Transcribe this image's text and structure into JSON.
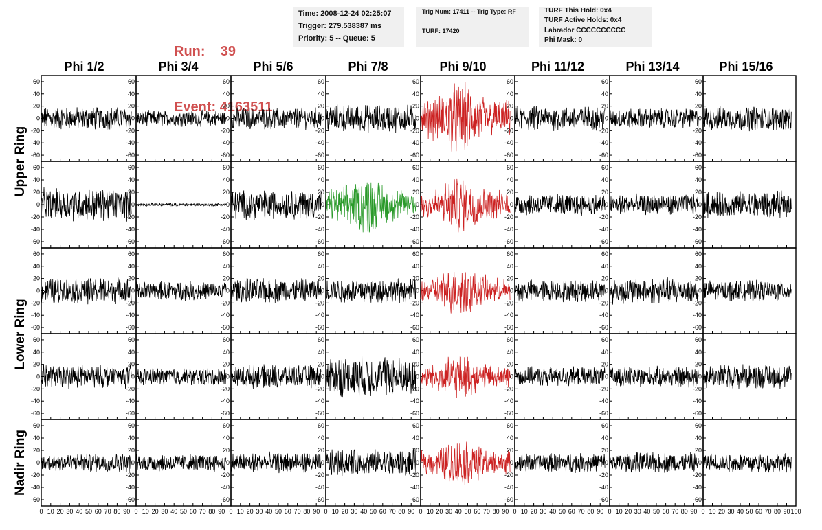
{
  "header": {
    "run_label": "Run:",
    "run_value": "39",
    "event_label": "Event:",
    "event_value": "4163511",
    "time": "Time: 2008-12-24 02:25:07",
    "trigger": "Trigger: 279.538387 ms",
    "priority": "Priority: 5 -- Queue: 5",
    "trig_num": "Trig Num: 17411 -- Trig Type: RF",
    "turf": "TURF: 17420",
    "turf_this_hold": "TURF This Hold: 0x4",
    "turf_active_holds": "TURF Active Holds: 0x4",
    "labrador": "Labrador CCCCCCCCCC",
    "phi_mask": "Phi Mask: 0"
  },
  "colors": {
    "highlight_text": "#d05050",
    "info_box_bg": "#f0f0f0",
    "trace_default": "#000000",
    "trace_red": "#cc2222",
    "trace_green": "#2a9a2a"
  },
  "chart_data": {
    "type": "line",
    "columns": [
      "Phi 1/2",
      "Phi 3/4",
      "Phi 5/6",
      "Phi 7/8",
      "Phi 9/10",
      "Phi 11/12",
      "Phi 13/14",
      "Phi 15/16"
    ],
    "rows": [
      "Upper Ring",
      "Upper Ring",
      "Lower Ring",
      "Lower Ring",
      "Nadir Ring"
    ],
    "row_labels": [
      {
        "text": "Upper Ring",
        "span_rows": [
          0,
          1
        ]
      },
      {
        "text": "Lower Ring",
        "span_rows": [
          2,
          3
        ]
      },
      {
        "text": "Nadir Ring",
        "span_rows": [
          4,
          4
        ]
      }
    ],
    "xlim": [
      0,
      100
    ],
    "ylim": [
      -70,
      70
    ],
    "y_ticks": [
      60,
      40,
      20,
      0,
      -20,
      -40,
      -60
    ],
    "x_ticks": [
      0,
      10,
      20,
      30,
      40,
      50,
      60,
      70,
      80,
      90,
      100
    ],
    "x_tick_labels": [
      "0",
      "10",
      "20",
      "30",
      "40",
      "50",
      "60",
      "70",
      "80",
      "90",
      "100"
    ],
    "samples_per_trace": 260,
    "trace_x_max": 95,
    "traces": [
      [
        {
          "amp": 16,
          "color": "black"
        },
        {
          "amp": 11,
          "color": "black"
        },
        {
          "amp": 15,
          "color": "black"
        },
        {
          "amp": 19,
          "color": "black"
        },
        {
          "amp": 50,
          "color": "red",
          "envelope": true
        },
        {
          "amp": 17,
          "color": "black"
        },
        {
          "amp": 14,
          "color": "black"
        },
        {
          "amp": 17,
          "color": "black"
        }
      ],
      [
        {
          "amp": 22,
          "color": "black"
        },
        {
          "amp": 2,
          "color": "black"
        },
        {
          "amp": 20,
          "color": "black"
        },
        {
          "amp": 40,
          "color": "green",
          "envelope": true
        },
        {
          "amp": 38,
          "color": "red",
          "envelope": true
        },
        {
          "amp": 15,
          "color": "black"
        },
        {
          "amp": 14,
          "color": "black"
        },
        {
          "amp": 18,
          "color": "black"
        }
      ],
      [
        {
          "amp": 18,
          "color": "black"
        },
        {
          "amp": 13,
          "color": "black"
        },
        {
          "amp": 17,
          "color": "black"
        },
        {
          "amp": 17,
          "color": "black"
        },
        {
          "amp": 34,
          "color": "red",
          "envelope": true
        },
        {
          "amp": 15,
          "color": "black"
        },
        {
          "amp": 18,
          "color": "black"
        },
        {
          "amp": 14,
          "color": "black"
        }
      ],
      [
        {
          "amp": 16,
          "color": "black"
        },
        {
          "amp": 12,
          "color": "black"
        },
        {
          "amp": 16,
          "color": "black"
        },
        {
          "amp": 28,
          "color": "black"
        },
        {
          "amp": 30,
          "color": "red",
          "envelope": true
        },
        {
          "amp": 13,
          "color": "black"
        },
        {
          "amp": 14,
          "color": "black"
        },
        {
          "amp": 17,
          "color": "black"
        }
      ],
      [
        {
          "amp": 13,
          "color": "black"
        },
        {
          "amp": 12,
          "color": "black"
        },
        {
          "amp": 14,
          "color": "black"
        },
        {
          "amp": 18,
          "color": "black"
        },
        {
          "amp": 32,
          "color": "red",
          "envelope": true
        },
        {
          "amp": 13,
          "color": "black"
        },
        {
          "amp": 14,
          "color": "black"
        },
        {
          "amp": 13,
          "color": "black"
        }
      ]
    ]
  }
}
